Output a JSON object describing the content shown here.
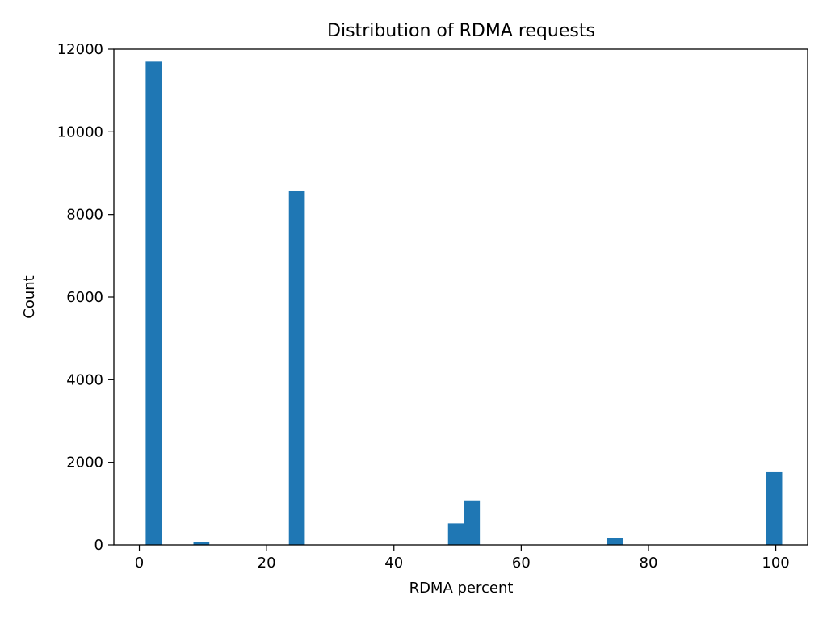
{
  "chart_data": {
    "type": "bar",
    "subtype": "histogram",
    "title": "Distribution of RDMA requests",
    "xlabel": "RDMA percent",
    "ylabel": "Count",
    "xlim": [
      -4,
      105
    ],
    "ylim": [
      0,
      12000
    ],
    "xticks": [
      0,
      20,
      40,
      60,
      80,
      100
    ],
    "yticks": [
      0,
      2000,
      4000,
      6000,
      8000,
      10000,
      12000
    ],
    "bar_color": "#1f77b4",
    "grid": false,
    "bins": [
      {
        "x0": 1.0,
        "x1": 3.5,
        "count": 11700
      },
      {
        "x0": 8.5,
        "x1": 11.0,
        "count": 60
      },
      {
        "x0": 23.5,
        "x1": 26.0,
        "count": 8580
      },
      {
        "x0": 48.5,
        "x1": 51.0,
        "count": 520
      },
      {
        "x0": 51.0,
        "x1": 53.5,
        "count": 1080
      },
      {
        "x0": 73.5,
        "x1": 76.0,
        "count": 170
      },
      {
        "x0": 98.5,
        "x1": 101.0,
        "count": 1760
      }
    ]
  }
}
